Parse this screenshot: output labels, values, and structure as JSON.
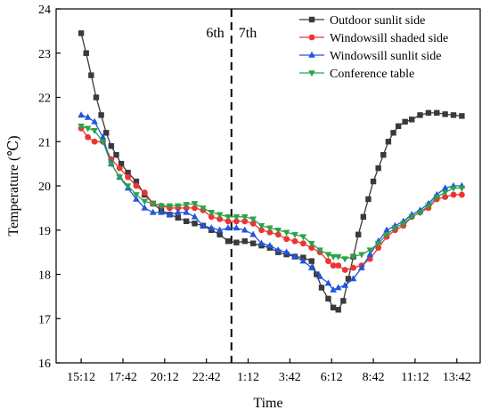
{
  "chart_data": {
    "type": "line",
    "xlabel": "Time",
    "ylabel": "Temperature (℃)",
    "ylim": [
      16,
      24
    ],
    "y_ticks": [
      "16",
      "17",
      "18",
      "19",
      "20",
      "21",
      "22",
      "23",
      "24"
    ],
    "x_ticks": [
      "15:12",
      "17:42",
      "20:12",
      "22:42",
      "1:12",
      "3:42",
      "6:12",
      "8:42",
      "11:12",
      "13:42"
    ],
    "x_tick_hours": [
      15.2,
      17.7,
      20.2,
      22.7,
      25.2,
      27.7,
      30.2,
      32.7,
      35.2,
      37.7
    ],
    "xlim": [
      13.7,
      39.1
    ],
    "day_divider": {
      "x_hour": 24.2,
      "left_label": "6th",
      "right_label": "7th"
    },
    "grid": false,
    "legend_position": "top-right",
    "series": [
      {
        "name": "Outdoor sunlit side",
        "color": "#3a3a3a",
        "marker": "square",
        "points": [
          [
            15.2,
            23.45
          ],
          [
            15.5,
            23.0
          ],
          [
            15.8,
            22.5
          ],
          [
            16.1,
            22.0
          ],
          [
            16.4,
            21.6
          ],
          [
            16.7,
            21.2
          ],
          [
            17.0,
            20.9
          ],
          [
            17.3,
            20.7
          ],
          [
            17.6,
            20.5
          ],
          [
            18.0,
            20.3
          ],
          [
            18.5,
            20.1
          ],
          [
            19.0,
            19.8
          ],
          [
            19.5,
            19.6
          ],
          [
            20.0,
            19.45
          ],
          [
            20.5,
            19.35
          ],
          [
            21.0,
            19.28
          ],
          [
            21.5,
            19.2
          ],
          [
            22.0,
            19.15
          ],
          [
            22.5,
            19.1
          ],
          [
            23.0,
            19.0
          ],
          [
            23.5,
            18.9
          ],
          [
            24.0,
            18.75
          ],
          [
            24.5,
            18.72
          ],
          [
            25.0,
            18.75
          ],
          [
            25.5,
            18.7
          ],
          [
            26.0,
            18.65
          ],
          [
            26.5,
            18.6
          ],
          [
            27.0,
            18.5
          ],
          [
            27.5,
            18.45
          ],
          [
            28.0,
            18.4
          ],
          [
            28.5,
            18.38
          ],
          [
            29.0,
            18.3
          ],
          [
            29.3,
            18.0
          ],
          [
            29.6,
            17.7
          ],
          [
            30.0,
            17.45
          ],
          [
            30.3,
            17.25
          ],
          [
            30.6,
            17.2
          ],
          [
            30.9,
            17.4
          ],
          [
            31.2,
            17.9
          ],
          [
            31.5,
            18.4
          ],
          [
            31.8,
            18.9
          ],
          [
            32.1,
            19.3
          ],
          [
            32.4,
            19.7
          ],
          [
            32.7,
            20.1
          ],
          [
            33.0,
            20.4
          ],
          [
            33.3,
            20.7
          ],
          [
            33.6,
            21.0
          ],
          [
            33.9,
            21.2
          ],
          [
            34.2,
            21.35
          ],
          [
            34.6,
            21.45
          ],
          [
            35.0,
            21.5
          ],
          [
            35.5,
            21.6
          ],
          [
            36.0,
            21.65
          ],
          [
            36.5,
            21.65
          ],
          [
            37.0,
            21.62
          ],
          [
            37.5,
            21.6
          ],
          [
            38.0,
            21.58
          ]
        ]
      },
      {
        "name": "Windowsill shaded side",
        "color": "#ee3333",
        "marker": "circle",
        "points": [
          [
            15.2,
            21.3
          ],
          [
            15.6,
            21.1
          ],
          [
            16.0,
            21.0
          ],
          [
            16.5,
            21.0
          ],
          [
            17.0,
            20.6
          ],
          [
            17.5,
            20.4
          ],
          [
            18.0,
            20.2
          ],
          [
            18.5,
            20.0
          ],
          [
            19.0,
            19.85
          ],
          [
            19.5,
            19.6
          ],
          [
            20.0,
            19.55
          ],
          [
            20.5,
            19.5
          ],
          [
            21.0,
            19.5
          ],
          [
            21.5,
            19.5
          ],
          [
            22.0,
            19.5
          ],
          [
            22.5,
            19.45
          ],
          [
            23.0,
            19.3
          ],
          [
            23.5,
            19.25
          ],
          [
            24.0,
            19.2
          ],
          [
            24.5,
            19.2
          ],
          [
            25.0,
            19.2
          ],
          [
            25.5,
            19.15
          ],
          [
            26.0,
            19.0
          ],
          [
            26.5,
            18.95
          ],
          [
            27.0,
            18.9
          ],
          [
            27.5,
            18.8
          ],
          [
            28.0,
            18.75
          ],
          [
            28.5,
            18.7
          ],
          [
            29.0,
            18.6
          ],
          [
            29.5,
            18.5
          ],
          [
            30.0,
            18.3
          ],
          [
            30.3,
            18.2
          ],
          [
            30.6,
            18.2
          ],
          [
            31.0,
            18.1
          ],
          [
            31.5,
            18.15
          ],
          [
            32.0,
            18.2
          ],
          [
            32.5,
            18.35
          ],
          [
            33.0,
            18.6
          ],
          [
            33.5,
            18.85
          ],
          [
            34.0,
            19.0
          ],
          [
            34.5,
            19.1
          ],
          [
            35.0,
            19.3
          ],
          [
            35.5,
            19.4
          ],
          [
            36.0,
            19.5
          ],
          [
            36.5,
            19.7
          ],
          [
            37.0,
            19.75
          ],
          [
            37.5,
            19.8
          ],
          [
            38.0,
            19.8
          ]
        ]
      },
      {
        "name": "Windowsill sunlit side",
        "color": "#2255dd",
        "marker": "triangle-up",
        "points": [
          [
            15.2,
            21.6
          ],
          [
            15.6,
            21.55
          ],
          [
            16.0,
            21.45
          ],
          [
            16.5,
            21.1
          ],
          [
            17.0,
            20.5
          ],
          [
            17.5,
            20.2
          ],
          [
            18.0,
            19.95
          ],
          [
            18.5,
            19.7
          ],
          [
            19.0,
            19.5
          ],
          [
            19.5,
            19.4
          ],
          [
            20.0,
            19.4
          ],
          [
            20.5,
            19.35
          ],
          [
            21.0,
            19.4
          ],
          [
            21.5,
            19.4
          ],
          [
            22.0,
            19.3
          ],
          [
            22.5,
            19.1
          ],
          [
            23.0,
            19.05
          ],
          [
            23.5,
            19.0
          ],
          [
            24.0,
            19.05
          ],
          [
            24.5,
            19.05
          ],
          [
            25.0,
            19.0
          ],
          [
            25.5,
            18.9
          ],
          [
            26.0,
            18.7
          ],
          [
            26.5,
            18.65
          ],
          [
            27.0,
            18.55
          ],
          [
            27.5,
            18.5
          ],
          [
            28.0,
            18.4
          ],
          [
            28.5,
            18.3
          ],
          [
            29.0,
            18.15
          ],
          [
            29.5,
            17.95
          ],
          [
            30.0,
            17.8
          ],
          [
            30.3,
            17.65
          ],
          [
            30.6,
            17.7
          ],
          [
            31.0,
            17.75
          ],
          [
            31.5,
            17.9
          ],
          [
            32.0,
            18.15
          ],
          [
            32.5,
            18.45
          ],
          [
            33.0,
            18.75
          ],
          [
            33.5,
            19.0
          ],
          [
            34.0,
            19.1
          ],
          [
            34.5,
            19.2
          ],
          [
            35.0,
            19.35
          ],
          [
            35.5,
            19.45
          ],
          [
            36.0,
            19.6
          ],
          [
            36.5,
            19.8
          ],
          [
            37.0,
            19.95
          ],
          [
            37.5,
            20.0
          ],
          [
            38.0,
            20.0
          ]
        ]
      },
      {
        "name": "Conference table",
        "color": "#2aa34a",
        "marker": "triangle-down",
        "points": [
          [
            15.2,
            21.35
          ],
          [
            15.6,
            21.3
          ],
          [
            16.0,
            21.25
          ],
          [
            16.5,
            21.0
          ],
          [
            17.0,
            20.5
          ],
          [
            17.5,
            20.2
          ],
          [
            18.0,
            20.0
          ],
          [
            18.5,
            19.8
          ],
          [
            19.0,
            19.65
          ],
          [
            19.5,
            19.6
          ],
          [
            20.0,
            19.55
          ],
          [
            20.5,
            19.55
          ],
          [
            21.0,
            19.55
          ],
          [
            21.5,
            19.58
          ],
          [
            22.0,
            19.6
          ],
          [
            22.5,
            19.5
          ],
          [
            23.0,
            19.4
          ],
          [
            23.5,
            19.35
          ],
          [
            24.0,
            19.3
          ],
          [
            24.5,
            19.3
          ],
          [
            25.0,
            19.3
          ],
          [
            25.5,
            19.25
          ],
          [
            26.0,
            19.1
          ],
          [
            26.5,
            19.05
          ],
          [
            27.0,
            19.0
          ],
          [
            27.5,
            18.95
          ],
          [
            28.0,
            18.9
          ],
          [
            28.5,
            18.85
          ],
          [
            29.0,
            18.7
          ],
          [
            29.5,
            18.55
          ],
          [
            30.0,
            18.45
          ],
          [
            30.3,
            18.4
          ],
          [
            30.6,
            18.4
          ],
          [
            31.0,
            18.35
          ],
          [
            31.5,
            18.4
          ],
          [
            32.0,
            18.45
          ],
          [
            32.5,
            18.55
          ],
          [
            33.0,
            18.7
          ],
          [
            33.5,
            18.9
          ],
          [
            34.0,
            19.05
          ],
          [
            34.5,
            19.15
          ],
          [
            35.0,
            19.3
          ],
          [
            35.5,
            19.4
          ],
          [
            36.0,
            19.55
          ],
          [
            36.5,
            19.75
          ],
          [
            37.0,
            19.85
          ],
          [
            37.5,
            19.95
          ],
          [
            38.0,
            19.95
          ]
        ]
      }
    ]
  }
}
